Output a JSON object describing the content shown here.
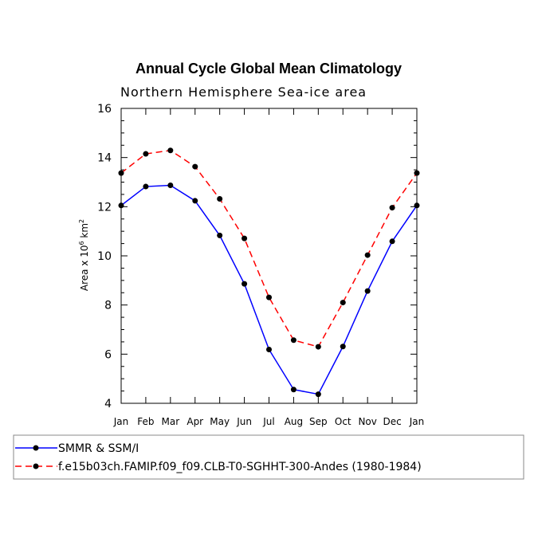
{
  "chart_data": {
    "type": "line",
    "title": "Annual Cycle Global Mean Climatology",
    "subtitle": "Northern Hemisphere Sea-ice area",
    "ylabel_main": "Area x 10",
    "ylabel_exp": "6",
    "ylabel_unit": " km",
    "ylabel_unit_exp": "2",
    "ylim": [
      4,
      16
    ],
    "yticks": [
      "4",
      "6",
      "8",
      "10",
      "12",
      "14",
      "16"
    ],
    "categories": [
      "Jan",
      "Feb",
      "Mar",
      "Apr",
      "May",
      "Jun",
      "Jul",
      "Aug",
      "Sep",
      "Oct",
      "Nov",
      "Dec",
      "Jan"
    ],
    "series": [
      {
        "name": "SMMR & SSM/I",
        "color": "#0000ff",
        "dash": "solid",
        "values": [
          12.05,
          12.82,
          12.87,
          12.24,
          10.83,
          8.86,
          6.19,
          4.56,
          4.37,
          6.31,
          8.57,
          10.59,
          12.05
        ]
      },
      {
        "name": "f.e15b03ch.FAMIP.f09_f09.CLB-T0-SGHHT-300-Andes (1980-1984)",
        "color": "#ff0000",
        "dash": "dashed",
        "values": [
          13.37,
          14.15,
          14.29,
          13.63,
          12.32,
          10.71,
          8.31,
          6.57,
          6.3,
          8.1,
          10.03,
          11.96,
          13.37
        ]
      }
    ]
  }
}
